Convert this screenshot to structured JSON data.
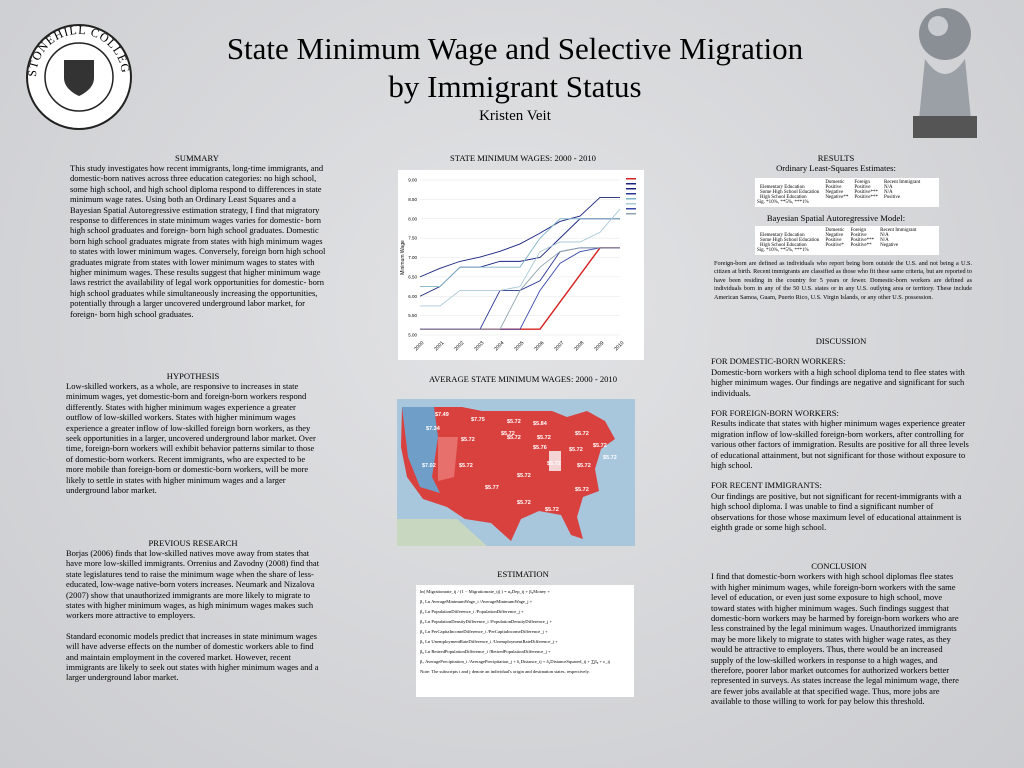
{
  "header": {
    "title_line1": "State Minimum Wage and Selective Migration",
    "title_line2": "by Immigrant Status",
    "author": "Kristen Veit",
    "logo_text": "STONEHILL COLLEGE"
  },
  "summary": {
    "heading": "SUMMARY",
    "text": "This study investigates how recent immigrants, long-time immigrants, and domestic-born natives across three education categories: no high school, some high school, and high school diploma respond to differences in state minimum wage rates.  Using both an Ordinary Least Squares and a Bayesian Spatial Autoregressive estimation strategy, I find that migratory response to differences in state minimum wages varies for domestic- born high school graduates and foreign- born high school graduates. Domestic born high school graduates migrate from states with high minimum wages to states with lower minimum wages. Conversely, foreign born high school graduates migrate from states with lower minimum wages to states with higher minimum wages. These results suggest that higher minimum wage laws restrict the availability of legal work opportunities for domestic- born high school graduates while simultaneously increasing the opportunities, potentially through a larger uncovered underground labor market, for foreign- born high school graduates."
  },
  "hypothesis": {
    "heading": "HYPOTHESIS",
    "text": "Low-skilled workers, as a whole, are responsive to increases in state minimum wages, yet domestic-born and foreign-born workers respond differently.  States with higher minimum wages experience a greater outflow of low-skilled workers. States with higher minimum wages experience a greater inflow of low-skilled foreign born workers, as they seek opportunities in a larger, uncovered underground labor market.  Over time, foreign-born workers will exhibit behavior patterns similar to those of domestic-born workers.  Recent immigrants, who are expected to be more mobile than foreign-born or domestic-born workers, will be more likely to settle in states with higher minimum wages and a larger underground labor market."
  },
  "previous_research": {
    "heading": "PREVIOUS RESEARCH",
    "paragraphs": [
      "Borjas (2006) finds that low-skilled natives move away from states that have more low-skilled immigrants.   Orrenius and Zavodny (2008) find that state legislatures tend to raise the minimum wage when the share of less-educated, low-wage native-born voters increases.  Neumark and Nizalova (2007) show that unauthorized immigrants are more likely to migrate to states with higher minimum wages, as high minimum wages makes such workers more attractive to employers.",
      "Standard economic models predict that increases in state minimum wages will have adverse effects on the number of domestic workers able to find and maintain employment in the covered market. However, recent immigrants are likely to seek out states with higher minimum wages and a larger underground labor market."
    ]
  },
  "wage_chart": {
    "title": "STATE MINIMUM WAGES: 2000 - 2010",
    "y_label": "Minimum Wage",
    "categories": [
      "2000",
      "2001",
      "2002",
      "2003",
      "2004",
      "2005",
      "2006",
      "2007",
      "2008",
      "2009",
      "2010"
    ],
    "ylim": [
      5,
      9
    ],
    "yticks": [
      {
        "value": 5,
        "label": "5.00"
      },
      {
        "value": 5.5,
        "label": "5.50"
      },
      {
        "value": 6,
        "label": "6.00"
      },
      {
        "value": 6.5,
        "label": "6.50"
      },
      {
        "value": 7,
        "label": "7.00"
      },
      {
        "value": 7.5,
        "label": "7.50"
      },
      {
        "value": 8,
        "label": "8.00"
      },
      {
        "value": 8.5,
        "label": "8.50"
      },
      {
        "value": 9,
        "label": "9.00"
      }
    ],
    "series": [
      {
        "color": "#d62020",
        "values": [
          5.15,
          5.15,
          5.15,
          5.15,
          5.15,
          5.15,
          5.15,
          5.85,
          6.55,
          7.25,
          7.25
        ]
      },
      {
        "color": "#1a237e",
        "values": [
          6.5,
          6.72,
          6.9,
          7.01,
          7.16,
          7.35,
          7.63,
          7.93,
          8.07,
          8.55,
          8.55
        ]
      },
      {
        "color": "#1a237e",
        "values": [
          6.0,
          6.25,
          6.75,
          6.75,
          6.9,
          6.9,
          7.0,
          7.5,
          8.0,
          8.0,
          8.0
        ]
      },
      {
        "color": "#283593",
        "values": [
          5.15,
          5.15,
          5.15,
          5.15,
          6.15,
          6.15,
          6.4,
          7.15,
          7.25,
          7.25,
          7.25
        ]
      },
      {
        "color": "#7fb3c8",
        "values": [
          6.25,
          6.25,
          6.75,
          6.75,
          6.75,
          6.75,
          7.5,
          8.0,
          8.0,
          8.0,
          8.0
        ]
      },
      {
        "color": "#aac8d6",
        "values": [
          5.75,
          5.75,
          6.15,
          6.15,
          6.15,
          6.25,
          7.15,
          7.4,
          7.4,
          7.65,
          8.25
        ]
      },
      {
        "color": "#3949ab",
        "values": [
          5.15,
          5.15,
          5.15,
          5.15,
          5.15,
          5.15,
          6.15,
          6.85,
          7.15,
          7.25,
          7.25
        ]
      },
      {
        "color": "#90a4ae",
        "values": [
          5.15,
          5.15,
          5.15,
          5.15,
          5.15,
          6.15,
          6.75,
          7.15,
          7.25,
          7.25,
          7.25
        ]
      }
    ]
  },
  "map": {
    "title": "AVERAGE STATE MINIMUM WAGES: 2000 - 2010",
    "labels": [
      "$7.49",
      "$7.34",
      "$7.75",
      "$5.72",
      "$5.72",
      "$5.84",
      "$7.02",
      "$5.72",
      "$5.72",
      "$5.72",
      "$5.76",
      "$5.72",
      "$5.72",
      "$5.72",
      "$5.72",
      "$5.77",
      "$5.72",
      "$5.72",
      "$5.72",
      "$5.72",
      "$5.72",
      "$5.72",
      "$5.72"
    ]
  },
  "estimation": {
    "heading": "ESTIMATION",
    "lines": [
      "ln( Migrationrate_ij / (1 − Migrationrate_ij) ) = α₀Dep_ij + β₀Money +",
      "β₁ Ln AverageMinimumWage_i /AverageMinimumWage_j +",
      "β₂ Ln PopulationDifference_i /PopulationDifference_j +",
      "β₃ Ln PopulationDensityDifference_i /PopulationDensityDifference_j +",
      "β₄ Ln PerCapitaIncomeDifference_i /PerCapitaIncomeDifference_j +",
      "β₅ Ln UnemploymentRateDifference_i /UnemploymentRateDifference_j +",
      "β₆ Ln RetiredPopulationDifference_i /RetiredPopulationDifference_j +",
      "β₇ AveragePrecipitation_i /AveragePrecipitation_j + δ₁Distance_ij + δ₂DistanceSquared_ij + ∑β₈ + ε_ij"
    ],
    "note": "Note: The subscripts i and j denote an individual's origin and destination states, respectively."
  },
  "results": {
    "heading": "RESULTS",
    "ols_title": "Ordinary Least-Squares Estimates:",
    "columns": [
      "Domestic",
      "Foreign",
      "Recent Immigrant"
    ],
    "ols_rows": [
      [
        "Elementary Education",
        "Positive",
        "Positive",
        "N/A"
      ],
      [
        "Some High School Education",
        "Negative",
        "Positive***",
        "N/A"
      ],
      [
        "High School Education",
        "Negative**",
        "Positive***",
        "Positive"
      ]
    ],
    "sig": "Sig. *10%, **5%, ***1%",
    "sar_title": "Bayesian Spatial Autoregressive Model:",
    "sar_rows": [
      [
        "Elementary Education",
        "Negative",
        "Positive",
        "N/A"
      ],
      [
        "Some High School Education",
        "Positive",
        "Positive***",
        "N/A"
      ],
      [
        "High School Education",
        "Positive*",
        "Positive**",
        "Negative"
      ]
    ],
    "note": "Foreign-born are defined as individuals who report being born outside the U.S. and not being a U.S. citizen at birth. Recent immigrants are classified as those who fit these same criteria, but are reported to have been residing in the country for 5 years or fewer. Domestic-born workers are defined as individuals born in any of the 50 U.S. states or in any U.S. outlying area or territory.  These include American Samoa, Guam, Puerto Rico, U.S. Virgin Islands, or any other U.S. possession."
  },
  "discussion": {
    "heading": "DISCUSSION",
    "domestic_heading": "FOR DOMESTIC-BORN WORKERS:",
    "domestic_text": "Domestic-born workers with a high school diploma tend to flee states with higher minimum wages. Our findings are negative and significant for such individuals.",
    "foreign_heading": "FOR FOREIGN-BORN WORKERS:",
    "foreign_text": "Results indicate that states with higher minimum wages experience greater migration inflow of low-skilled foreign-born workers, after controlling for various other factors of immigration.  Results are positive for all three levels of educational attainment, but not significant for those without exposure to high school.",
    "recent_heading": "FOR RECENT IMMIGRANTS:",
    "recent_text": "Our findings are positive, but not significant for recent-immigrants with a high school diploma.  I was unable to find a significant number of observations for those whose maximum level of educational attainment is eighth grade or some high school."
  },
  "conclusion": {
    "heading": "CONCLUSION",
    "text": "I find that domestic-born workers with high school diplomas flee states with higher minimum wages, while foreign-born workers with the same level of education, or even just some exposure to high school, move toward states with higher minimum wages. Such findings suggest that domestic-born workers may be harmed by foreign-born workers who are less constrained by the legal minimum wages.  Unauthorized immigrants may be more likely to migrate to states with higher wage rates, as they would be attractive to employers.  Thus, there would be an increased supply of the low-skilled workers in response to a high wages, and therefore, poorer labor market outcomes for authorized workers better represented in surveys.  As states increase the legal minimum wage, there are fewer jobs available at that specified wage.  Thus, more jobs are available to those willing to work for pay below this threshold."
  }
}
